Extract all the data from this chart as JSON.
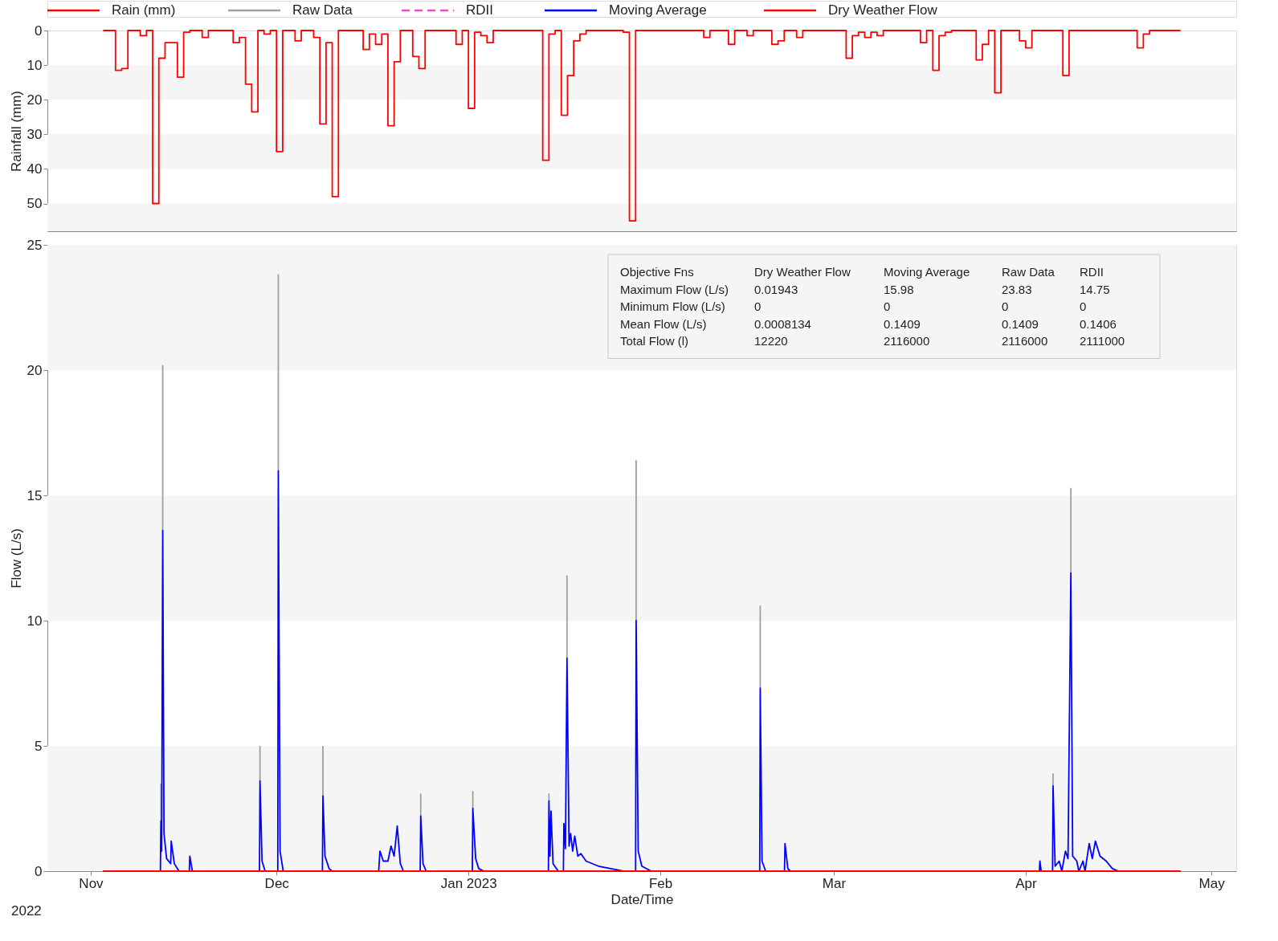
{
  "chart_data": [
    {
      "type": "step",
      "ylabel": "Rainfall (mm)",
      "ylim": [
        58,
        0
      ],
      "yticks": [
        0,
        10,
        20,
        30,
        40,
        50
      ],
      "xlim": [
        "2022-10-25",
        "2023-05-05"
      ],
      "tick_labels": "y",
      "legend": "top",
      "x": [
        "2022-11-03",
        "2022-11-05",
        "2022-11-06",
        "2022-11-07",
        "2022-11-09",
        "2022-11-10",
        "2022-11-11",
        "2022-11-12",
        "2022-11-13",
        "2022-11-15",
        "2022-11-16",
        "2022-11-17",
        "2022-11-19",
        "2022-11-20",
        "2022-11-24",
        "2022-11-25",
        "2022-11-26",
        "2022-11-27",
        "2022-11-28",
        "2022-11-29",
        "2022-11-30",
        "2022-12-01",
        "2022-12-02",
        "2022-12-04",
        "2022-12-05",
        "2022-12-07",
        "2022-12-08",
        "2022-12-09",
        "2022-12-10",
        "2022-12-11",
        "2022-12-15",
        "2022-12-16",
        "2022-12-17",
        "2022-12-18",
        "2022-12-19",
        "2022-12-20",
        "2022-12-21",
        "2022-12-23",
        "2022-12-24",
        "2022-12-25",
        "2022-12-30",
        "2022-12-31",
        "2023-01-01",
        "2023-01-02",
        "2023-01-03",
        "2023-01-04",
        "2023-01-05",
        "2023-01-13",
        "2023-01-14",
        "2023-01-15",
        "2023-01-16",
        "2023-01-17",
        "2023-01-18",
        "2023-01-19",
        "2023-01-20",
        "2023-01-26",
        "2023-01-27",
        "2023-01-28",
        "2023-02-08",
        "2023-02-09",
        "2023-02-12",
        "2023-02-13",
        "2023-02-15",
        "2023-02-16",
        "2023-02-19",
        "2023-02-20",
        "2023-02-21",
        "2023-02-23",
        "2023-02-24",
        "2023-03-03",
        "2023-03-04",
        "2023-03-05",
        "2023-03-06",
        "2023-03-07",
        "2023-03-08",
        "2023-03-09",
        "2023-03-15",
        "2023-03-16",
        "2023-03-17",
        "2023-03-18",
        "2023-03-19",
        "2023-03-20",
        "2023-03-24",
        "2023-03-25",
        "2023-03-26",
        "2023-03-27",
        "2023-03-28",
        "2023-03-31",
        "2023-04-01",
        "2023-04-02",
        "2023-04-07",
        "2023-04-08",
        "2023-04-19",
        "2023-04-20",
        "2023-04-21",
        "2023-04-26"
      ],
      "series": [
        {
          "name": "Rain (mm)",
          "color": "#ff0000",
          "values": [
            0,
            11.5,
            11,
            0,
            1.5,
            0,
            50,
            8,
            3.5,
            13.5,
            0.5,
            0,
            2,
            0,
            3.5,
            2,
            15.5,
            23.5,
            0,
            1,
            0,
            35,
            0,
            3,
            0,
            2,
            27,
            3.5,
            48,
            0,
            5.5,
            1,
            4,
            1,
            27.5,
            9,
            0,
            7.5,
            11,
            0,
            4,
            0,
            22.5,
            0.5,
            1.5,
            3.5,
            0,
            37.5,
            1,
            0,
            24.5,
            13,
            3,
            1,
            0,
            0.5,
            55,
            0,
            2,
            0,
            4,
            0,
            1.5,
            0,
            4,
            3,
            0,
            2,
            0,
            8,
            1.5,
            0.5,
            2,
            0.5,
            1.5,
            0,
            3.5,
            0,
            11.5,
            1.5,
            0.5,
            0,
            8.5,
            4,
            0,
            18,
            0,
            3,
            5,
            0,
            13,
            0,
            5,
            1,
            0,
            0
          ]
        }
      ]
    },
    {
      "type": "line",
      "xlabel": "Date/Time",
      "ylabel": "Flow (L/s)",
      "ylim": [
        0,
        25
      ],
      "yticks": [
        0,
        5,
        10,
        15,
        20,
        25
      ],
      "xlim": [
        "2022-10-25",
        "2023-05-05"
      ],
      "xticks": [
        {
          "value": "2022-11-01",
          "label": "Nov"
        },
        {
          "value": "2022-12-01",
          "label": "Dec"
        },
        {
          "value": "2023-01-01",
          "label": "Jan 2023"
        },
        {
          "value": "2023-02-01",
          "label": "Feb"
        },
        {
          "value": "2023-03-01",
          "label": "Mar"
        },
        {
          "value": "2023-04-01",
          "label": "Apr"
        },
        {
          "value": "2023-05-01",
          "label": "May"
        }
      ],
      "legend": "top",
      "annotations": [
        "2022",
        "Objective Fns",
        "Dry Weather Flow",
        "Moving Average",
        "Raw Data",
        "RDII",
        "Maximum Flow (L/s)",
        "0.01943",
        "15.98",
        "23.83",
        "14.75",
        "Minimum Flow (L/s)",
        "0",
        "0",
        "0",
        "0",
        "Mean Flow (L/s)",
        "0.0008134",
        "0.1409",
        "0.1409",
        "0.1406",
        "Total Flow (l)",
        "12220",
        "2116000",
        "2116000",
        "2111000"
      ],
      "x": [
        "2022-11-03T00:00",
        "2022-11-12T06:00",
        "2022-11-12T08:00",
        "2022-11-12T11:00",
        "2022-11-12T15:00",
        "2022-11-12T20:00",
        "2022-11-13T06:00",
        "2022-11-13T22:00",
        "2022-11-14T00:00",
        "2022-11-14T12:00",
        "2022-11-15T06:00",
        "2022-11-16T22:00",
        "2022-11-17T00:00",
        "2022-11-17T10:00",
        "2022-11-28T06:00",
        "2022-11-28T08:00",
        "2022-11-28T16:00",
        "2022-11-29T04:00",
        "2022-12-01T05:00",
        "2022-12-01T07:00",
        "2022-12-01T14:00",
        "2022-12-02T02:00",
        "2022-12-08T10:00",
        "2022-12-08T12:00",
        "2022-12-08T20:00",
        "2022-12-09T12:00",
        "2022-12-10T00:00",
        "2022-12-17T12:00",
        "2022-12-17T17:00",
        "2022-12-18T06:00",
        "2022-12-19T00:00",
        "2022-12-19T12:00",
        "2022-12-20T00:00",
        "2022-12-20T12:00",
        "2022-12-21T00:00",
        "2022-12-21T12:00",
        "2022-12-24T05:00",
        "2022-12-24T07:00",
        "2022-12-24T16:00",
        "2022-12-25T04:00",
        "2023-01-01T15:00",
        "2023-01-01T17:00",
        "2023-01-02T04:00",
        "2023-01-02T16:00",
        "2023-01-03T12:00",
        "2023-01-13T22:00",
        "2023-01-14T00:00",
        "2023-01-14T04:00",
        "2023-01-14T08:00",
        "2023-01-14T16:00",
        "2023-01-15T12:00",
        "2023-01-16T08:00",
        "2023-01-16T10:00",
        "2023-01-16T16:00",
        "2023-01-16T22:00",
        "2023-01-17T06:00",
        "2023-01-17T12:00",
        "2023-01-17T20:00",
        "2023-01-18T04:00",
        "2023-01-18T16:00",
        "2023-01-19T04:00",
        "2023-01-20T00:00",
        "2023-01-22T00:00",
        "2023-01-24T00:00",
        "2023-01-26T00:00",
        "2023-01-28T00:00",
        "2023-01-28T02:00",
        "2023-01-28T10:00",
        "2023-01-29T00:00",
        "2023-01-30T12:00",
        "2023-02-17T01:00",
        "2023-02-17T03:00",
        "2023-02-17T10:00",
        "2023-02-18T00:00",
        "2023-02-21T01:00",
        "2023-02-21T03:00",
        "2023-02-21T14:00",
        "2023-02-22T00:00",
        "2023-04-03T05:00",
        "2023-04-03T07:00",
        "2023-04-03T12:00",
        "2023-04-05T08:00",
        "2023-04-05T10:00",
        "2023-04-05T18:00",
        "2023-04-06T10:00",
        "2023-04-06T20:00",
        "2023-04-07T10:00",
        "2023-04-07T20:00",
        "2023-04-08T07:00",
        "2023-04-08T14:00",
        "2023-04-09T06:00",
        "2023-04-09T14:00",
        "2023-04-10T06:00",
        "2023-04-10T14:00",
        "2023-04-11T06:00",
        "2023-04-11T18:00",
        "2023-04-12T06:00",
        "2023-04-13T00:00",
        "2023-04-14T00:00",
        "2023-04-15T00:00",
        "2023-04-16T00:00",
        "2023-04-26T00:00"
      ],
      "series": [
        {
          "name": "Raw Data",
          "color": "#a0a0a0",
          "x": [
            "2022-11-12T08:00",
            "2022-11-12T08:00",
            "2022-11-12T09:00",
            "2022-11-12T15:00",
            "2022-11-12T15:00",
            "2022-11-12T16:00",
            "2022-11-28T08:00",
            "2022-11-28T08:00",
            "2022-11-28T09:00",
            "2022-12-01T07:00",
            "2022-12-01T07:00",
            "2022-12-01T08:00",
            "2022-12-08T12:00",
            "2022-12-08T12:00",
            "2022-12-08T13:00",
            "2022-12-24T07:00",
            "2022-12-24T07:00",
            "2022-12-24T08:00",
            "2023-01-01T17:00",
            "2023-01-01T17:00",
            "2023-01-01T18:00",
            "2023-01-14T00:00",
            "2023-01-14T00:00",
            "2023-01-14T01:00",
            "2023-01-16T22:00",
            "2023-01-16T22:00",
            "2023-01-16T23:00",
            "2023-01-28T02:00",
            "2023-01-28T02:00",
            "2023-01-28T03:00",
            "2023-02-17T03:00",
            "2023-02-17T03:00",
            "2023-02-17T04:00",
            "2023-04-05T10:00",
            "2023-04-05T10:00",
            "2023-04-05T11:00",
            "2023-04-08T07:00",
            "2023-04-08T07:00"
          ],
          "values": [
            2.0,
            3.5,
            null,
            13.6,
            20.2,
            null,
            3.6,
            5.0,
            null,
            15.98,
            23.83,
            null,
            3.0,
            5.0,
            null,
            2.2,
            3.1,
            null,
            2.5,
            3.2,
            null,
            2.8,
            3.1,
            null,
            8.5,
            11.8,
            null,
            10.0,
            16.4,
            null,
            7.3,
            10.6,
            null,
            3.4,
            3.9,
            null,
            11.9,
            15.3
          ]
        },
        {
          "name": "RDII",
          "color": "#ff44cc",
          "line_style": "dashed",
          "values": [
            null,
            null,
            null,
            null,
            null,
            null,
            null,
            null,
            null,
            null,
            null,
            null,
            null,
            null,
            null,
            null,
            null,
            null,
            null,
            null,
            null,
            null,
            null,
            null,
            null,
            null,
            null,
            null,
            null,
            null,
            null,
            null,
            null,
            null,
            null,
            null,
            null,
            null,
            null,
            null,
            null,
            null,
            null,
            null,
            null,
            null,
            null,
            null,
            null,
            null,
            null,
            null,
            null,
            null,
            null,
            null,
            null,
            null,
            null,
            null,
            null,
            null,
            null,
            null,
            null,
            null,
            null,
            null,
            null,
            null,
            null,
            null,
            null,
            null,
            null,
            null,
            null,
            null,
            null,
            null,
            null,
            null,
            null,
            null,
            null,
            null,
            null,
            null,
            null,
            null,
            null,
            null,
            null,
            null,
            null,
            null,
            null,
            null,
            null,
            null,
            null,
            null
          ]
        },
        {
          "name": "Moving Average",
          "color": "#0000ff",
          "values": [
            0,
            0,
            2.0,
            0.8,
            13.6,
            1.5,
            0.5,
            0.3,
            1.2,
            0.3,
            0,
            0,
            0.6,
            0,
            0,
            3.6,
            0.4,
            0,
            0,
            15.98,
            0.8,
            0,
            0,
            3.0,
            0.6,
            0.1,
            0,
            0,
            0.8,
            0.4,
            0.4,
            1.0,
            0.6,
            1.8,
            0.3,
            0,
            0,
            2.2,
            0.3,
            0,
            0,
            2.5,
            0.5,
            0.1,
            0,
            0,
            2.8,
            0.6,
            2.4,
            0.3,
            0,
            0,
            1.9,
            0.9,
            8.5,
            1.0,
            1.5,
            0.8,
            1.4,
            0.6,
            0.7,
            0.4,
            0.2,
            0.1,
            0,
            0,
            10.0,
            0.8,
            0.2,
            0,
            0,
            7.3,
            0.4,
            0,
            0,
            1.1,
            0.1,
            0,
            0,
            0.4,
            0,
            0,
            3.4,
            0.2,
            0.4,
            0,
            0.8,
            0.5,
            11.9,
            0.6,
            0.4,
            0,
            0.4,
            0,
            1.1,
            0.5,
            1.2,
            0.6,
            0.4,
            0.1,
            0,
            0
          ]
        },
        {
          "name": "Dry Weather Flow",
          "color": "#ff0000",
          "x": [
            "2022-11-03T00:00",
            "2023-04-26T00:00"
          ],
          "values": [
            0,
            0
          ]
        }
      ]
    }
  ]
}
